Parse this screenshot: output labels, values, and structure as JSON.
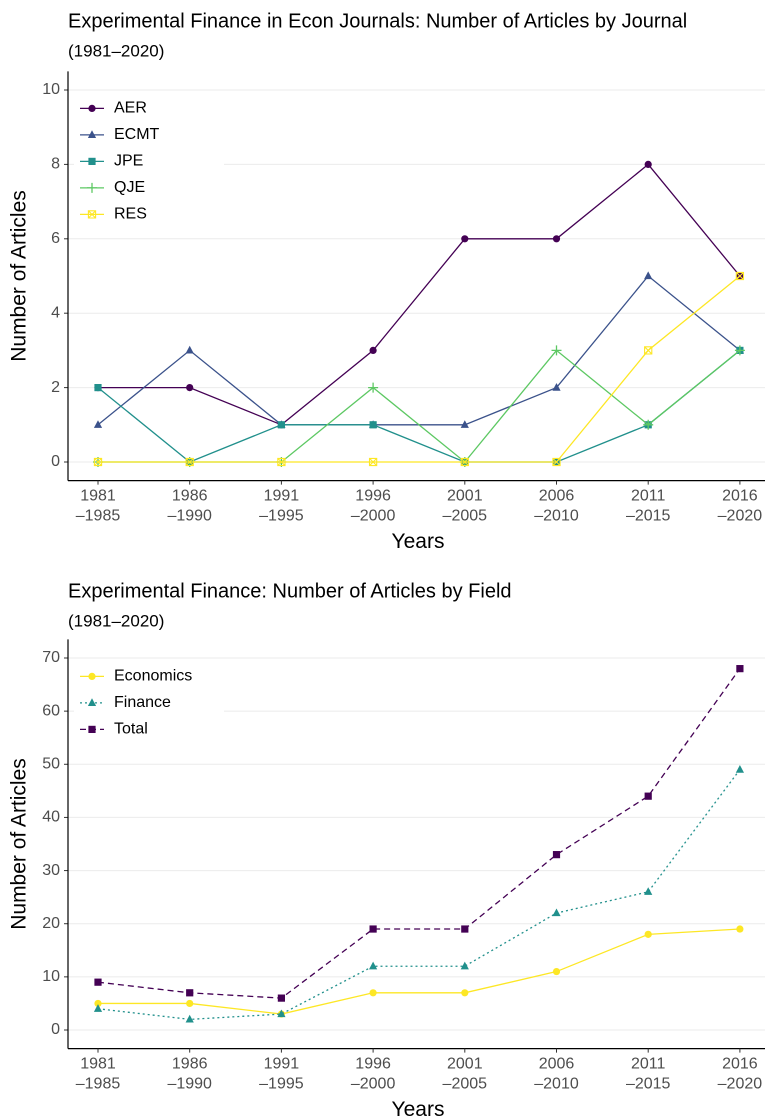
{
  "chart_data": [
    {
      "type": "line",
      "title": "Experimental Finance in Econ Journals: Number of Articles by Journal",
      "subtitle": "(1981–2020)",
      "x_label": "Years",
      "y_label": "Number of Articles",
      "categories": [
        "1981\n–1985",
        "1986\n–1990",
        "1991\n–1995",
        "1996\n–2000",
        "2001\n–2005",
        "2006\n–2010",
        "2011\n–2015",
        "2016\n–2020"
      ],
      "series": [
        {
          "name": "AER",
          "color": "#440154",
          "marker": "circle",
          "linestyle": "solid",
          "values": [
            2,
            2,
            1,
            3,
            6,
            6,
            8,
            5
          ]
        },
        {
          "name": "ECMT",
          "color": "#3b528b",
          "marker": "triangle",
          "linestyle": "solid",
          "values": [
            1,
            3,
            1,
            1,
            1,
            2,
            5,
            3
          ]
        },
        {
          "name": "JPE",
          "color": "#21908c",
          "marker": "square",
          "linestyle": "solid",
          "values": [
            2,
            0,
            1,
            1,
            0,
            0,
            1,
            3
          ]
        },
        {
          "name": "QJE",
          "color": "#5dc863",
          "marker": "plus",
          "linestyle": "solid",
          "values": [
            0,
            0,
            0,
            2,
            0,
            3,
            1,
            3
          ]
        },
        {
          "name": "RES",
          "color": "#fde725",
          "marker": "boxcross",
          "linestyle": "solid",
          "values": [
            0,
            0,
            0,
            0,
            0,
            0,
            3,
            5
          ]
        }
      ],
      "ylim": [
        -0.5,
        10.5
      ],
      "yticks": [
        0,
        2,
        4,
        6,
        8,
        10
      ],
      "grid": true,
      "legend": "top-left"
    },
    {
      "type": "line",
      "title": "Experimental Finance: Number of Articles by Field",
      "subtitle": "(1981–2020)",
      "x_label": "Years",
      "y_label": "Number of Articles",
      "categories": [
        "1981\n–1985",
        "1986\n–1990",
        "1991\n–1995",
        "1996\n–2000",
        "2001\n–2005",
        "2006\n–2010",
        "2011\n–2015",
        "2016\n–2020"
      ],
      "series": [
        {
          "name": "Economics",
          "color": "#fde725",
          "marker": "circle",
          "linestyle": "solid",
          "values": [
            5,
            5,
            3,
            7,
            7,
            11,
            18,
            19
          ]
        },
        {
          "name": "Finance",
          "color": "#21908c",
          "marker": "triangle",
          "linestyle": "dotted",
          "values": [
            4,
            2,
            3,
            12,
            12,
            22,
            26,
            49
          ]
        },
        {
          "name": "Total",
          "color": "#440154",
          "marker": "square",
          "linestyle": "dashed",
          "values": [
            9,
            7,
            6,
            19,
            19,
            33,
            44,
            68
          ]
        }
      ],
      "ylim": [
        -3.5,
        73.5
      ],
      "yticks": [
        0,
        10,
        20,
        30,
        40,
        50,
        60,
        70
      ],
      "grid": true,
      "legend": "top-left"
    }
  ]
}
